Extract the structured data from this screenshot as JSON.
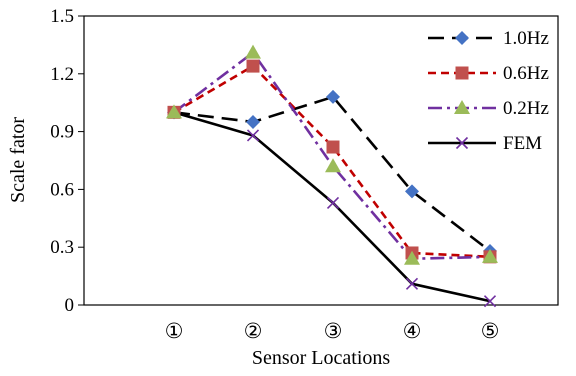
{
  "chart_data": {
    "type": "line",
    "title": "",
    "xlabel": "Sensor Locations",
    "ylabel": "Scale fator",
    "categories": [
      "①",
      "②",
      "③",
      "④",
      "⑤"
    ],
    "ylim": [
      0,
      1.5
    ],
    "yticks": [
      "0",
      "0.3",
      "0.6",
      "0.9",
      "1.2",
      "1.5"
    ],
    "ytick_values": [
      0,
      0.3,
      0.6,
      0.9,
      1.2,
      1.5
    ],
    "grid": false,
    "legend_position": "top-right",
    "series": [
      {
        "name": "1.0Hz",
        "values": [
          1.0,
          0.95,
          1.08,
          0.59,
          0.28
        ],
        "color": "#4472C4",
        "line_color": "#000000",
        "dash": "long-dash",
        "marker": "diamond"
      },
      {
        "name": "0.6Hz",
        "values": [
          1.0,
          1.24,
          0.82,
          0.27,
          0.25
        ],
        "color": "#C0504D",
        "line_color": "#C00000",
        "dash": "short-dash",
        "marker": "square"
      },
      {
        "name": "0.2Hz",
        "values": [
          1.0,
          1.31,
          0.72,
          0.24,
          0.25
        ],
        "color": "#9BBB59",
        "line_color": "#7030A0",
        "dash": "dash-dot",
        "marker": "triangle"
      },
      {
        "name": "FEM",
        "values": [
          1.0,
          0.88,
          0.53,
          0.11,
          0.02
        ],
        "color": "#7030A0",
        "line_color": "#000000",
        "dash": "solid",
        "marker": "x"
      }
    ]
  }
}
